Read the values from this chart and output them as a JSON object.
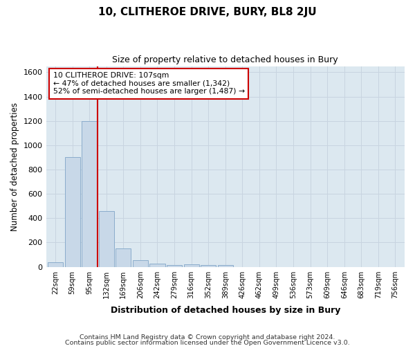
{
  "title": "10, CLITHEROE DRIVE, BURY, BL8 2JU",
  "subtitle": "Size of property relative to detached houses in Bury",
  "xlabel": "Distribution of detached houses by size in Bury",
  "ylabel": "Number of detached properties",
  "categories": [
    "22sqm",
    "59sqm",
    "95sqm",
    "132sqm",
    "169sqm",
    "206sqm",
    "242sqm",
    "279sqm",
    "316sqm",
    "352sqm",
    "389sqm",
    "426sqm",
    "462sqm",
    "499sqm",
    "536sqm",
    "573sqm",
    "609sqm",
    "646sqm",
    "683sqm",
    "719sqm",
    "756sqm"
  ],
  "bar_values": [
    40,
    900,
    1200,
    460,
    150,
    55,
    25,
    15,
    20,
    15,
    15,
    0,
    0,
    0,
    0,
    0,
    0,
    0,
    0,
    0,
    0
  ],
  "bar_color": "#c8d8e8",
  "bar_edge_color": "#8aaccc",
  "property_line_x": 2.5,
  "property_line_color": "#cc0000",
  "ylim": [
    0,
    1650
  ],
  "yticks": [
    0,
    200,
    400,
    600,
    800,
    1000,
    1200,
    1400,
    1600
  ],
  "annotation_text": "10 CLITHEROE DRIVE: 107sqm\n← 47% of detached houses are smaller (1,342)\n52% of semi-detached houses are larger (1,487) →",
  "annotation_box_color": "#ffffff",
  "annotation_box_edge": "#cc0000",
  "footer_line1": "Contains HM Land Registry data © Crown copyright and database right 2024.",
  "footer_line2": "Contains public sector information licensed under the Open Government Licence v3.0.",
  "grid_color": "#c8d4e0",
  "background_color": "#dce8f0"
}
